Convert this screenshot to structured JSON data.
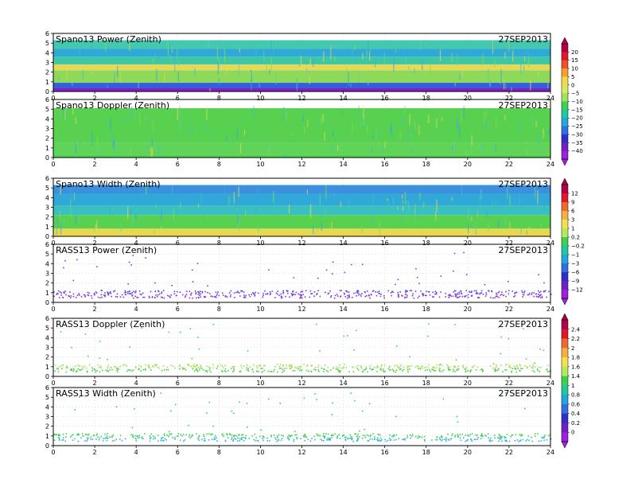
{
  "date": "27SEP2013",
  "x_tick_labels": [
    "0",
    "2",
    "4",
    "6",
    "8",
    "10",
    "12",
    "14",
    "16",
    "18",
    "20",
    "22",
    "24"
  ],
  "y_tick_labels": [
    "0",
    "1",
    "2",
    "3",
    "4",
    "5",
    "6"
  ],
  "colorbars": [
    {
      "name": "power",
      "labels": [
        "20",
        "15",
        "10",
        "5",
        "0",
        "−5",
        "−10",
        "−15",
        "−20",
        "−25",
        "−30",
        "−35",
        "−40"
      ],
      "colors": [
        "#b0004a",
        "#e0182c",
        "#f0502a",
        "#f6a030",
        "#f6d84a",
        "#d8e860",
        "#a0e060",
        "#40d050",
        "#20c8a0",
        "#20a8d8",
        "#3070e0",
        "#3030c8",
        "#7020c0",
        "#a020e0"
      ]
    },
    {
      "name": "width",
      "labels": [
        "12",
        "9",
        "6",
        "3",
        "1",
        "0.2",
        "−0.2",
        "−1",
        "−3",
        "−6",
        "−9",
        "−12"
      ],
      "colors": [
        "#b0004a",
        "#e0182c",
        "#f06a30",
        "#f6b040",
        "#f6e050",
        "#b8e860",
        "#40d050",
        "#20c8a0",
        "#20a8d8",
        "#3070e0",
        "#3030c8",
        "#7020c0",
        "#a020e0"
      ]
    },
    {
      "name": "doppler",
      "labels": [
        "2.4",
        "2.2",
        "2",
        "1.8",
        "1.6",
        "1.4",
        "1",
        "0.8",
        "0.6",
        "0.4",
        "0.2",
        "0"
      ],
      "colors": [
        "#b0004a",
        "#e0182c",
        "#f06a30",
        "#f6b040",
        "#f6e050",
        "#b8e860",
        "#40d050",
        "#20c8a0",
        "#20a8d8",
        "#3070e0",
        "#3030c8",
        "#7020c0",
        "#a020e0"
      ]
    }
  ],
  "chart_data": [
    {
      "type": "heatmap",
      "title": "Spano13 Power (Zenith)",
      "annotation": "27SEP2013",
      "xlim": [
        0,
        24
      ],
      "ylim": [
        0,
        6
      ],
      "grid": true,
      "data_start_hour": 0,
      "data_end_hour": 24,
      "bands": [
        {
          "from": 0,
          "to": 0.4,
          "color": "#7a24c8"
        },
        {
          "from": 0.4,
          "to": 0.9,
          "color": "#2e60e0"
        },
        {
          "from": 0.9,
          "to": 2.2,
          "color": "#8ed85a"
        },
        {
          "from": 2.2,
          "to": 2.8,
          "color": "#e8d858"
        },
        {
          "from": 2.8,
          "to": 3.6,
          "color": "#3cc8a8"
        },
        {
          "from": 3.6,
          "to": 4.4,
          "color": "#30a8d8"
        },
        {
          "from": 4.4,
          "to": 5.3,
          "color": "#44c8b0"
        }
      ]
    },
    {
      "type": "heatmap",
      "title": "Spano13 Doppler (Zenith)",
      "annotation": "27SEP2013",
      "xlim": [
        0,
        24
      ],
      "ylim": [
        0,
        6
      ],
      "grid": true,
      "data_start_hour": 0,
      "data_end_hour": 24,
      "bands": [
        {
          "from": 0,
          "to": 0.3,
          "color": "#50d050"
        },
        {
          "from": 0.3,
          "to": 1.5,
          "color": "#60d458"
        },
        {
          "from": 1.5,
          "to": 5.1,
          "color": "#58d050"
        }
      ]
    },
    {
      "type": "heatmap",
      "title": "Spano13 Width (Zenith)",
      "annotation": "27SEP2013",
      "xlim": [
        0,
        24
      ],
      "ylim": [
        0,
        6
      ],
      "grid": true,
      "data_start_hour": 0,
      "data_end_hour": 24,
      "bands": [
        {
          "from": 0,
          "to": 0.8,
          "color": "#e8d850"
        },
        {
          "from": 0.8,
          "to": 2.2,
          "color": "#58d050"
        },
        {
          "from": 2.2,
          "to": 3.2,
          "color": "#3ac0c0"
        },
        {
          "from": 3.2,
          "to": 4.4,
          "color": "#30a8d8"
        },
        {
          "from": 4.4,
          "to": 5.3,
          "color": "#3c90e0"
        }
      ]
    },
    {
      "type": "scatter",
      "title": "RASS13 Power (Zenith)",
      "annotation": "27SEP2013",
      "xlim": [
        0,
        24
      ],
      "ylim": [
        0,
        6
      ],
      "grid": true,
      "data_start_hour": 0,
      "data_end_hour": 24,
      "bands": [
        {
          "from": 0.5,
          "to": 0.9,
          "color": "#8a30e0"
        },
        {
          "from": 0.9,
          "to": 1.3,
          "color": "#6048e0"
        }
      ]
    },
    {
      "type": "scatter",
      "title": "RASS13 Doppler (Zenith)",
      "annotation": "27SEP2013",
      "xlim": [
        0,
        24
      ],
      "ylim": [
        0,
        6
      ],
      "grid": true,
      "data_start_hour": 0,
      "data_end_hour": 24,
      "bands": [
        {
          "from": 0.5,
          "to": 0.9,
          "color": "#48d048"
        },
        {
          "from": 0.9,
          "to": 1.3,
          "color": "#a8e050"
        }
      ]
    },
    {
      "type": "scatter",
      "title": "RASS13 Width (Zenith)",
      "annotation": "27SEP2013",
      "xlim": [
        0,
        24
      ],
      "ylim": [
        0,
        6
      ],
      "grid": true,
      "data_start_hour": 0,
      "data_end_hour": 24,
      "bands": [
        {
          "from": 0.5,
          "to": 0.9,
          "color": "#30b8d0"
        },
        {
          "from": 0.9,
          "to": 1.3,
          "color": "#40d050"
        }
      ]
    }
  ]
}
